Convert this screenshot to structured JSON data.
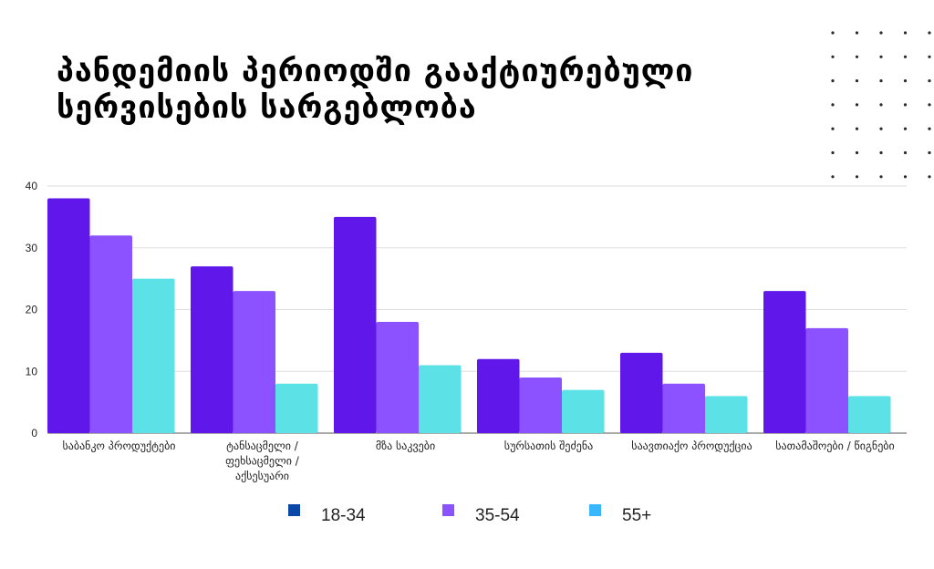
{
  "title_lines": [
    "პანდემიის პერიოდში გააქტიურებული",
    "სერვისების სარგებლობა"
  ],
  "chart_data": {
    "type": "bar",
    "title": "პანდემიის პერიოდში გააქტიურებული სერვისების სარგებლობა",
    "categories": [
      [
        "საბანკო პროდუქტები"
      ],
      [
        "ტანსაცმელი /",
        "ფეხსაცმელი /",
        "აქსესუარი"
      ],
      [
        "მზა საკვები"
      ],
      [
        "სურსათის შეძენა"
      ],
      [
        "საავთიაქო პროდუქცია"
      ],
      [
        "სათამაშოები / წიგნები"
      ]
    ],
    "series": [
      {
        "name": "18-34",
        "values": [
          38,
          27,
          35,
          12,
          13,
          23
        ],
        "color": "#5f17ea",
        "legend_color": "#0a47a6"
      },
      {
        "name": "35-54",
        "values": [
          32,
          23,
          18,
          9,
          8,
          17
        ],
        "color": "#8c52ff",
        "legend_color": "#8c52ff"
      },
      {
        "name": "55+",
        "values": [
          25,
          8,
          11,
          7,
          6,
          6
        ],
        "color": "#5ce1e6",
        "legend_color": "#38b6ff"
      }
    ],
    "yticks": [
      0,
      10,
      20,
      30,
      40
    ],
    "ylim": [
      0,
      40
    ],
    "grid": true,
    "legend_position": "bottom"
  }
}
